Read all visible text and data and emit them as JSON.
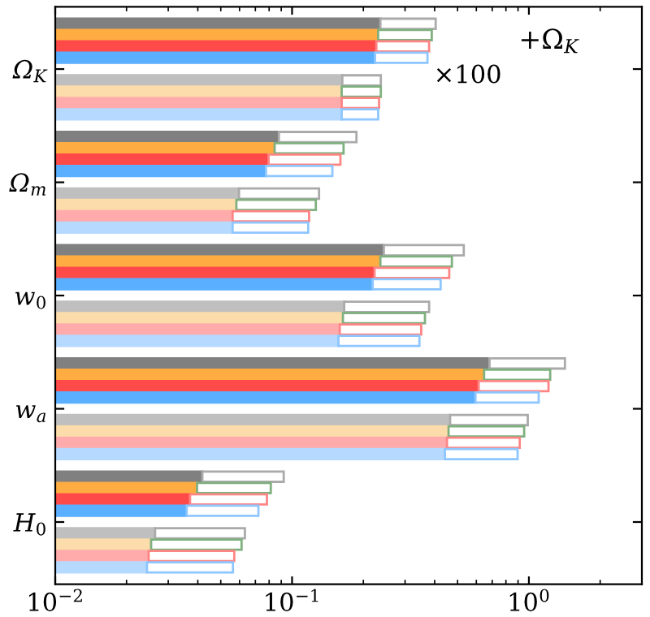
{
  "chart_data": {
    "type": "bar",
    "orientation": "horizontal",
    "stacked": true,
    "log": "x",
    "categories": [
      null,
      null,
      null,
      null,
      null,
      "Ω$_{K}$",
      null,
      null,
      null,
      null,
      null,
      null,
      null,
      null,
      null,
      "Ω$_{m}$",
      null,
      null,
      null,
      null,
      null,
      null,
      null,
      null,
      null,
      "w$_{0}$",
      null,
      null,
      null,
      null,
      null,
      null,
      null,
      null,
      null,
      "w$_{a}$",
      null,
      null,
      null,
      null,
      null,
      null,
      null,
      null,
      null,
      "H$_{0}$",
      null,
      null,
      null,
      null,
      null
    ],
    "series": [
      {
        "values": [
          null,
          0.236,
          0.231,
          0.227,
          0.224,
          null,
          0.163,
          0.162,
          0.162,
          0.162,
          null,
          0.088,
          0.0844,
          0.0796,
          0.0776,
          null,
          0.0597,
          0.0582,
          0.0561,
          0.0561,
          null,
          0.244,
          0.236,
          0.223,
          0.219,
          null,
          0.166,
          0.164,
          0.159,
          0.157,
          null,
          0.682,
          0.647,
          0.614,
          0.595,
          null,
          0.465,
          0.458,
          0.451,
          0.442,
          null,
          0.0418,
          0.0397,
          0.0371,
          0.0359,
          null,
          0.0264,
          0.0254,
          0.0248,
          0.0244,
          null
        ],
        "colors": [
          null,
          "#808080",
          "#ffad42",
          "#ff4a4a",
          "#5aafff",
          null,
          "#bfbfbf",
          "#fcdcaa",
          "#ffabab",
          "#b5d9ff",
          null,
          "#808080",
          "#ffad42",
          "#ff4a4a",
          "#5aafff",
          null,
          "#bfbfbf",
          "#fcdcaa",
          "#ffabab",
          "#b5d9ff",
          null,
          "#808080",
          "#ffad42",
          "#ff4a4a",
          "#5aafff",
          null,
          "#bfbfbf",
          "#fcdcaa",
          "#ffabab",
          "#b5d9ff",
          null,
          "#808080",
          "#ffad42",
          "#ff4a4a",
          "#5aafff",
          null,
          "#bfbfbf",
          "#fcdcaa",
          "#ffabab",
          "#b5d9ff",
          null,
          "#808080",
          "#ffad42",
          "#ff4a4a",
          "#5aafff",
          null,
          "#bfbfbf",
          "#fcdcaa",
          "#ffabab",
          "#b5d9ff",
          null
        ]
      },
      {
        "values": [
          null,
          0.168,
          0.158,
          0.152,
          0.149,
          null,
          0.074,
          0.075,
          0.071,
          0.069,
          null,
          0.099,
          0.0806,
          0.0804,
          0.0704,
          null,
          0.0703,
          0.0678,
          0.0619,
          0.0609,
          null,
          0.287,
          0.237,
          0.238,
          0.205,
          null,
          0.213,
          0.2,
          0.192,
          0.188,
          null,
          0.738,
          0.583,
          0.596,
          0.505,
          null,
          0.524,
          0.497,
          0.464,
          0.454,
          null,
          0.0504,
          0.0416,
          0.0412,
          0.0362,
          null,
          0.0368,
          0.0358,
          0.0322,
          0.0319,
          null
        ],
        "colors": [
          null,
          "#aaaaaa",
          "#7fb07f",
          "#ff8585",
          "#8ec6ff",
          null,
          "#aaaaaa",
          "#7fb07f",
          "#ff8585",
          "#8ec6ff",
          null,
          "#aaaaaa",
          "#7fb07f",
          "#ff8585",
          "#8ec6ff",
          null,
          "#aaaaaa",
          "#7fb07f",
          "#ff8585",
          "#8ec6ff",
          null,
          "#aaaaaa",
          "#7fb07f",
          "#ff8585",
          "#8ec6ff",
          null,
          "#aaaaaa",
          "#7fb07f",
          "#ff8585",
          "#8ec6ff",
          null,
          "#aaaaaa",
          "#7fb07f",
          "#ff8585",
          "#8ec6ff",
          null,
          "#aaaaaa",
          "#7fb07f",
          "#ff8585",
          "#8ec6ff",
          null,
          "#aaaaaa",
          "#7fb07f",
          "#ff8585",
          "#8ec6ff",
          null,
          "#aaaaaa",
          "#7fb07f",
          "#ff8585",
          "#8ec6ff",
          null
        ]
      }
    ],
    "xlim": [
      0.01,
      3
    ],
    "xticks": [
      {
        "value": 0.01,
        "label": "10$^{−2}$"
      },
      {
        "value": 0.1,
        "label": "10$^{−1}$"
      },
      {
        "value": 1,
        "label": "10$^{0}$"
      }
    ],
    "annotations": [
      "+Ω$_{K}$",
      "×100"
    ],
    "grid": false
  }
}
